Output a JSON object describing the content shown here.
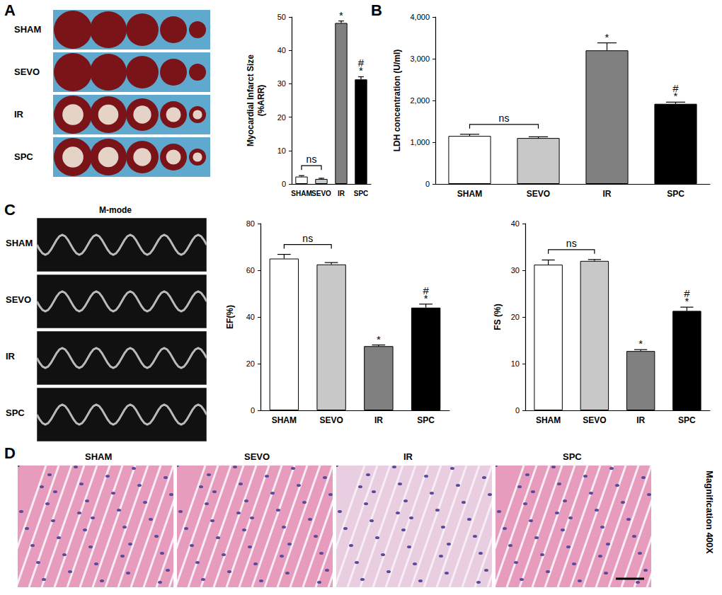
{
  "chart_data": [
    {
      "type": "bar",
      "y_label": "Myocardial Infarct Size\n(%ARR)",
      "categories": [
        "SHAM",
        "SEVO",
        "IR",
        "SPC"
      ],
      "values": [
        2.2,
        1.5,
        48.2,
        31.3
      ],
      "errors": [
        0.3,
        0.2,
        0.6,
        0.8
      ],
      "colors": [
        "#ffffff",
        "#c8c8c8",
        "#808080",
        "#000000"
      ],
      "ylim": [
        0,
        50
      ],
      "yticks": [
        0,
        10,
        20,
        30,
        40,
        50
      ],
      "grid": false,
      "annotations": {
        "above": [
          null,
          null,
          [
            "*"
          ],
          [
            "#",
            "*"
          ]
        ],
        "bracket": {
          "from": "SHAM",
          "to": "SEVO",
          "label": "ns"
        }
      }
    },
    {
      "type": "bar",
      "y_label": "LDH concentration (U/ml)",
      "categories": [
        "SHAM",
        "SEVO",
        "IR",
        "SPC"
      ],
      "values": [
        1150,
        1100,
        3200,
        1920
      ],
      "errors": [
        40,
        30,
        180,
        40
      ],
      "colors": [
        "#ffffff",
        "#c8c8c8",
        "#808080",
        "#000000"
      ],
      "ylim": [
        0,
        4000
      ],
      "yticks": [
        0,
        1000,
        2000,
        3000,
        4000
      ],
      "grid": false,
      "annotations": {
        "above": [
          null,
          null,
          [
            "*"
          ],
          [
            "#",
            "*"
          ]
        ],
        "bracket": {
          "from": "SHAM",
          "to": "SEVO",
          "label": "ns"
        }
      }
    },
    {
      "type": "bar",
      "y_label": "EF(%)",
      "categories": [
        "SHAM",
        "SEVO",
        "IR",
        "SPC"
      ],
      "values": [
        65,
        62.5,
        27.5,
        44
      ],
      "errors": [
        1.8,
        0.8,
        0.5,
        1.5
      ],
      "colors": [
        "#ffffff",
        "#c8c8c8",
        "#808080",
        "#000000"
      ],
      "ylim": [
        0,
        80
      ],
      "yticks": [
        0,
        20,
        40,
        60,
        80
      ],
      "grid": false,
      "annotations": {
        "above": [
          null,
          null,
          [
            "*"
          ],
          [
            "#",
            "*"
          ]
        ],
        "bracket": {
          "from": "SHAM",
          "to": "SEVO",
          "label": "ns"
        }
      }
    },
    {
      "type": "bar",
      "y_label": "FS (%)",
      "categories": [
        "SHAM",
        "SEVO",
        "IR",
        "SPC"
      ],
      "values": [
        31.2,
        32,
        12.7,
        21.3
      ],
      "errors": [
        1,
        0.3,
        0.3,
        0.8
      ],
      "colors": [
        "#ffffff",
        "#c8c8c8",
        "#808080",
        "#000000"
      ],
      "ylim": [
        0,
        40
      ],
      "yticks": [
        0,
        10,
        20,
        30,
        40
      ],
      "grid": false,
      "annotations": {
        "above": [
          null,
          null,
          [
            "*"
          ],
          [
            "#",
            "*"
          ]
        ],
        "bracket": {
          "from": "SHAM",
          "to": "SEVO",
          "label": "ns"
        }
      }
    }
  ],
  "figure": {
    "panel_letters": [
      "A",
      "B",
      "C",
      "D"
    ],
    "A_image_rows": [
      "SHAM",
      "SEVO",
      "IR",
      "SPC"
    ],
    "C_image_title": "M-mode",
    "C_image_rows": [
      "SHAM",
      "SEVO",
      "IR",
      "SPC"
    ],
    "D_image_titles": [
      "SHAM",
      "SEVO",
      "IR",
      "SPC"
    ],
    "D_note": "Magnification 400X"
  }
}
